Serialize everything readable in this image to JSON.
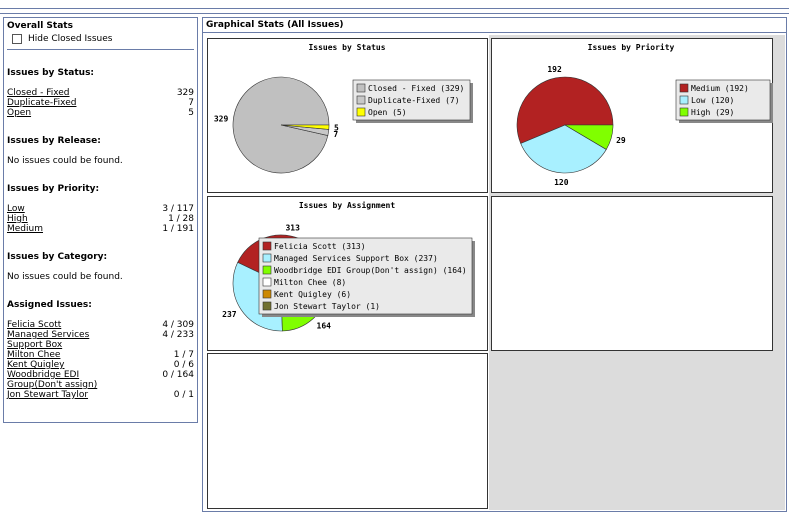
{
  "sidebar": {
    "title": "Overall Stats",
    "hide_closed": "Hide Closed Issues",
    "sections": [
      {
        "heading": "Issues by Status:",
        "rows": [
          {
            "label": "Closed - Fixed",
            "value": "329"
          },
          {
            "label": "Duplicate-Fixed",
            "value": "7"
          },
          {
            "label": "Open",
            "value": "5"
          }
        ]
      },
      {
        "heading": "Issues by Release:",
        "message": "No issues could be found."
      },
      {
        "heading": "Issues by Priority:",
        "rows": [
          {
            "label": "Low",
            "value": "3 / 117"
          },
          {
            "label": "High",
            "value": "1 / 28"
          },
          {
            "label": "Medium",
            "value": "1 / 191"
          }
        ]
      },
      {
        "heading": "Issues by Category:",
        "message": "No issues could be found."
      },
      {
        "heading": "Assigned Issues:",
        "rows": [
          {
            "label": "Felicia Scott",
            "value": "4 / 309"
          },
          {
            "label": "Managed Services Support Box",
            "value": "4 / 233"
          },
          {
            "label": "Milton Chee",
            "value": "1 / 7"
          },
          {
            "label": "Kent Quigley",
            "value": "0 / 6"
          },
          {
            "label": "Woodbridge EDI Group(Don't assign)",
            "value": "0 / 164"
          },
          {
            "label": "Jon Stewart Taylor",
            "value": "0 / 1"
          }
        ]
      }
    ]
  },
  "main": {
    "title": "Graphical Stats (All Issues)",
    "charts": [
      {
        "type": "pie",
        "title": "Issues by Status",
        "legend": [
          "Closed - Fixed (329)",
          "Duplicate-Fixed (7)",
          "Open (5)"
        ],
        "values": [
          329,
          7,
          5
        ],
        "colors": [
          "#c0c0c0",
          "#c8c8c8",
          "#ffff00"
        ]
      },
      {
        "type": "pie",
        "title": "Issues by Priority",
        "legend": [
          "Medium (192)",
          "Low (120)",
          "High (29)"
        ],
        "values": [
          192,
          120,
          29
        ],
        "colors": [
          "#b22222",
          "#a8f0ff",
          "#80ff00"
        ]
      },
      {
        "type": "pie",
        "title": "Issues by Assignment",
        "legend": [
          "Felicia Scott (313)",
          "Managed Services Support Box (237)",
          "Woodbridge EDI Group(Don't assign) (164)",
          "Milton Chee (8)",
          "Kent Quigley (6)",
          "Jon Stewart Taylor (1)"
        ],
        "values": [
          313,
          237,
          164,
          8,
          6,
          1
        ],
        "value_labels": [
          "313",
          "237",
          "164",
          null,
          null,
          null
        ],
        "colors": [
          "#b22222",
          "#a8f0ff",
          "#80ff00",
          "#ffffff",
          "#cc8800",
          "#707030"
        ]
      }
    ]
  }
}
